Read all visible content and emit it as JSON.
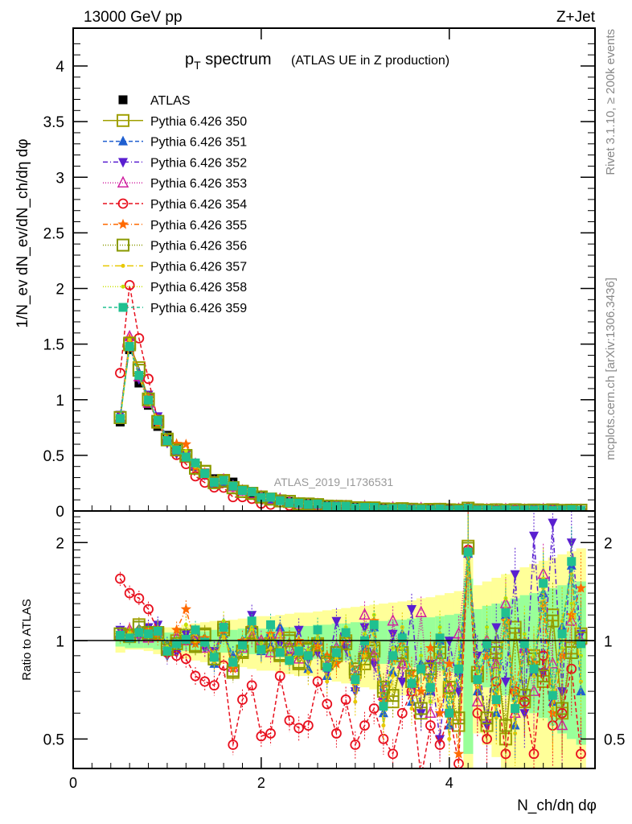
{
  "chart_data": {
    "type": "line",
    "header_left": "13000 GeV pp",
    "header_right": "Z+Jet",
    "title_main": "p",
    "title_sub": "T",
    "title_word": " spectrum",
    "title_note": "(ATLAS UE in Z production)",
    "ylabel_main": "1/N_ev dN_ev/dN_ch/dη dφ",
    "ylabel_ratio": "Ratio to ATLAS",
    "xlabel": "N_ch/dη dφ",
    "side_text_1": "Rivet 3.1.10, ≥ 200k events",
    "side_text_2": "mcplots.cern.ch [arXiv:1306.3436]",
    "watermark": "ATLAS_2019_I1736531",
    "xlim": [
      0,
      5.55
    ],
    "ylim_main": [
      0,
      4.34
    ],
    "ylim_ratio": [
      0.406,
      2.5
    ],
    "ratio_scale": "log",
    "x_ticks": [
      "0",
      "2",
      "4"
    ],
    "y_ticks_main": [
      "0",
      "0.5",
      "1",
      "1.5",
      "2",
      "2.5",
      "3",
      "3.5",
      "4"
    ],
    "y_ticks_ratio": [
      "0.5",
      "1",
      "2"
    ],
    "legend_placement": "top-left",
    "x": [
      0.5,
      0.6,
      0.7,
      0.8,
      0.9,
      1.0,
      1.1,
      1.2,
      1.3,
      1.4,
      1.5,
      1.6,
      1.7,
      1.8,
      1.9,
      2.0,
      2.1,
      2.2,
      2.3,
      2.4,
      2.5,
      2.6,
      2.7,
      2.8,
      2.9,
      3.0,
      3.1,
      3.2,
      3.3,
      3.4,
      3.5,
      3.6,
      3.7,
      3.8,
      3.9,
      4.0,
      4.1,
      4.2,
      4.3,
      4.4,
      4.5,
      4.6,
      4.7,
      4.8,
      4.9,
      5.0,
      5.1,
      5.2,
      5.3,
      5.4
    ],
    "data": {
      "name": "ATLAS",
      "values": [
        0.8,
        1.45,
        1.15,
        0.95,
        0.76,
        0.68,
        0.56,
        0.48,
        0.4,
        0.34,
        0.29,
        0.25,
        0.26,
        0.19,
        0.15,
        0.13,
        0.11,
        0.1,
        0.085,
        0.075,
        0.066,
        0.058,
        0.051,
        0.045,
        0.04,
        0.036,
        0.032,
        0.029,
        0.026,
        0.024,
        0.022,
        0.02,
        0.018,
        0.017,
        0.016,
        0.015,
        0.014,
        0.013,
        0.012,
        0.011,
        0.011,
        0.01,
        0.01,
        0.009,
        0.009,
        0.008,
        0.008,
        0.008,
        0.007,
        0.007
      ],
      "band_inner": [
        0.04,
        0.05,
        0.05,
        0.05,
        0.06,
        0.06,
        0.06,
        0.07,
        0.07,
        0.07,
        0.08,
        0.08,
        0.08,
        0.09,
        0.09,
        0.09,
        0.1,
        0.1,
        0.1,
        0.11,
        0.11,
        0.12,
        0.12,
        0.13,
        0.13,
        0.14,
        0.14,
        0.15,
        0.15,
        0.16,
        0.16,
        0.17,
        0.18,
        0.18,
        0.19,
        0.2,
        0.21,
        0.55,
        0.25,
        0.28,
        0.3,
        0.32,
        0.35,
        0.38,
        0.4,
        0.42,
        0.45,
        0.48,
        0.5,
        0.52
      ],
      "band_outer": [
        0.08,
        0.06,
        0.06,
        0.07,
        0.09,
        0.1,
        0.1,
        0.12,
        0.13,
        0.14,
        0.15,
        0.15,
        0.16,
        0.17,
        0.18,
        0.19,
        0.19,
        0.2,
        0.21,
        0.22,
        0.22,
        0.23,
        0.24,
        0.25,
        0.26,
        0.27,
        0.28,
        0.29,
        0.3,
        0.31,
        0.32,
        0.33,
        0.35,
        0.36,
        0.38,
        0.4,
        0.42,
        0.8,
        0.48,
        0.52,
        0.56,
        0.6,
        0.64,
        0.68,
        0.72,
        0.76,
        0.8,
        0.84,
        0.88,
        0.92
      ],
      "band_inner_color": "#99ff99",
      "band_outer_color": "#ffff99"
    },
    "series": [
      {
        "name": "Pythia 6.426 350",
        "color": "#a0a000",
        "marker": "square-open",
        "dash": "",
        "ratio": [
          1.05,
          1.03,
          1.12,
          1.05,
          1.05,
          0.95,
          1.0,
          1.02,
          0.97,
          1.05,
          0.88,
          1.1,
          0.8,
          0.92,
          1.05,
          0.97,
          0.98,
          0.9,
          1.02,
          0.85,
          0.95,
          0.98,
          0.85,
          0.9,
          1.0,
          0.8,
          0.85,
          0.95,
          0.7,
          0.65,
          0.9,
          0.75,
          0.6,
          0.8,
          0.95,
          0.7,
          0.55,
          1.95,
          0.8,
          0.55,
          0.95,
          0.5,
          1.1,
          0.65,
          0.9,
          0.75,
          1.2,
          0.6,
          0.95,
          1.05
        ]
      },
      {
        "name": "Pythia 6.426 351",
        "color": "#1f5fd0",
        "marker": "triangle-up",
        "dash": "5,3",
        "ratio": [
          1.06,
          1.02,
          1.08,
          1.04,
          1.1,
          0.97,
          0.95,
          1.03,
          1.0,
          0.98,
          0.85,
          1.05,
          0.9,
          1.0,
          1.12,
          0.93,
          0.96,
          1.1,
          0.88,
          0.95,
          0.82,
          1.0,
          0.78,
          0.9,
          1.05,
          0.72,
          0.95,
          1.1,
          0.6,
          0.8,
          1.05,
          0.65,
          0.85,
          0.7,
          1.0,
          0.55,
          0.8,
          1.85,
          0.7,
          0.95,
          0.6,
          1.2,
          0.55,
          0.95,
          0.8,
          1.4,
          0.65,
          1.1,
          1.7,
          0.7
        ]
      },
      {
        "name": "Pythia 6.426 352",
        "color": "#5a1fd0",
        "marker": "triangle-down",
        "dash": "6,3,1,3",
        "ratio": [
          1.08,
          1.05,
          1.03,
          1.1,
          1.12,
          0.9,
          0.92,
          1.05,
          1.02,
          0.95,
          0.93,
          1.08,
          0.85,
          0.97,
          1.2,
          0.95,
          1.02,
          0.98,
          0.9,
          1.08,
          0.88,
          0.92,
          0.8,
          1.15,
          0.95,
          0.7,
          1.1,
          0.85,
          0.65,
          1.05,
          0.75,
          1.25,
          0.6,
          0.85,
          0.5,
          1.0,
          0.7,
          1.8,
          0.9,
          0.55,
          1.1,
          0.75,
          1.6,
          0.6,
          2.1,
          0.8,
          2.3,
          0.7,
          2.0,
          1.05
        ]
      },
      {
        "name": "Pythia 6.426 353",
        "color": "#d020a0",
        "marker": "triangle-open",
        "dash": "1,2",
        "ratio": [
          1.05,
          1.08,
          1.05,
          1.02,
          1.07,
          0.93,
          1.02,
          1.0,
          1.05,
          0.95,
          0.9,
          1.12,
          0.83,
          0.95,
          1.03,
          1.0,
          0.92,
          1.05,
          0.95,
          0.88,
          0.92,
          1.0,
          0.84,
          0.95,
          1.02,
          0.78,
          1.2,
          0.9,
          0.68,
          1.15,
          0.85,
          0.7,
          1.22,
          0.6,
          0.88,
          0.72,
          1.05,
          1.9,
          0.65,
          1.0,
          0.85,
          1.3,
          0.6,
          0.95,
          0.7,
          1.6,
          0.85,
          0.55,
          1.15,
          1.0
        ]
      },
      {
        "name": "Pythia 6.426 354",
        "color": "#e8101e",
        "marker": "circle-open",
        "dash": "5,3",
        "ratio": [
          1.55,
          1.4,
          1.35,
          1.25,
          1.07,
          0.92,
          0.9,
          0.88,
          0.78,
          0.75,
          0.73,
          0.84,
          0.48,
          0.66,
          0.73,
          0.51,
          0.52,
          0.78,
          0.57,
          0.54,
          0.55,
          0.75,
          0.64,
          0.52,
          0.66,
          0.48,
          0.55,
          0.62,
          0.5,
          0.45,
          0.6,
          0.7,
          0.38,
          0.55,
          0.48,
          0.6,
          0.42,
          1.9,
          0.6,
          0.5,
          0.75,
          0.45,
          0.7,
          0.65,
          0.45,
          0.9,
          0.55,
          0.6,
          0.82,
          0.45
        ]
      },
      {
        "name": "Pythia 6.426 355",
        "color": "#ff6a00",
        "marker": "star",
        "dash": "6,3,1,3",
        "ratio": [
          1.04,
          1.07,
          1.06,
          1.08,
          1.03,
          0.95,
          1.08,
          1.25,
          0.98,
          1.02,
          0.9,
          1.08,
          0.82,
          1.0,
          1.1,
          0.94,
          1.05,
          0.93,
          0.88,
          1.0,
          0.9,
          0.96,
          0.9,
          0.85,
          1.05,
          0.75,
          0.92,
          1.15,
          0.65,
          0.88,
          1.0,
          0.8,
          0.7,
          0.95,
          0.6,
          0.85,
          0.45,
          1.88,
          0.75,
          0.9,
          0.65,
          1.15,
          0.7,
          1.0,
          0.85,
          1.3,
          0.6,
          0.9,
          1.2,
          1.45
        ]
      },
      {
        "name": "Pythia 6.426 356",
        "color": "#8a9a00",
        "marker": "square-open",
        "dash": "1,2",
        "ratio": [
          1.05,
          1.04,
          1.1,
          1.06,
          1.06,
          0.94,
          0.98,
          1.04,
          0.96,
          1.04,
          0.88,
          1.08,
          0.81,
          0.93,
          1.06,
          0.96,
          0.97,
          0.91,
          1.0,
          0.86,
          0.94,
          0.97,
          0.86,
          0.92,
          0.98,
          0.82,
          0.88,
          0.93,
          0.72,
          0.68,
          0.92,
          0.78,
          0.62,
          0.82,
          0.92,
          0.72,
          0.58,
          1.92,
          0.78,
          0.58,
          0.92,
          0.55,
          1.05,
          0.68,
          0.88,
          0.78,
          1.15,
          0.62,
          0.92,
          1.02
        ]
      },
      {
        "name": "Pythia 6.426 357",
        "color": "#e8c800",
        "marker": "dot",
        "dash": "8,3,1,3",
        "ratio": [
          1.03,
          1.02,
          1.05,
          1.04,
          1.08,
          0.92,
          0.96,
          1.02,
          1.05,
          0.97,
          0.86,
          1.03,
          0.88,
          0.98,
          1.1,
          0.92,
          0.95,
          1.05,
          0.85,
          0.92,
          0.8,
          1.05,
          0.75,
          0.88,
          1.08,
          0.65,
          0.9,
          1.05,
          0.55,
          0.78,
          1.1,
          0.62,
          0.8,
          0.75,
          1.05,
          0.5,
          0.85,
          1.8,
          0.72,
          1.0,
          0.58,
          1.25,
          0.52,
          1.0,
          0.78,
          1.45,
          0.62,
          1.15,
          1.6,
          0.75
        ]
      },
      {
        "name": "Pythia 6.426 358",
        "color": "#c8e000",
        "marker": "dot",
        "dash": "1,2",
        "ratio": [
          1.04,
          1.06,
          1.05,
          1.03,
          1.09,
          0.96,
          1.0,
          1.12,
          1.0,
          0.99,
          0.92,
          1.15,
          0.84,
          0.96,
          1.08,
          0.98,
          1.04,
          0.95,
          0.9,
          0.96,
          0.94,
          1.02,
          0.82,
          0.9,
          1.1,
          0.74,
          1.05,
          1.2,
          0.62,
          0.95,
          0.95,
          0.75,
          0.9,
          0.65,
          1.1,
          0.62,
          0.88,
          1.85,
          0.8,
          1.1,
          0.7,
          1.35,
          0.65,
          1.05,
          0.9,
          1.55,
          0.7,
          0.95,
          1.3,
          0.9
        ]
      },
      {
        "name": "Pythia 6.426 359",
        "color": "#20c090",
        "marker": "square",
        "dash": "4,3",
        "ratio": [
          1.04,
          1.02,
          1.06,
          1.05,
          1.07,
          0.93,
          0.98,
          1.01,
          1.08,
          0.99,
          0.89,
          1.1,
          0.86,
          0.97,
          1.15,
          0.94,
          1.12,
          0.92,
          0.87,
          0.93,
          0.9,
          1.08,
          0.83,
          0.92,
          1.06,
          0.76,
          1.0,
          1.12,
          0.63,
          0.9,
          1.02,
          0.74,
          0.82,
          0.72,
          1.02,
          0.6,
          0.82,
          1.87,
          0.76,
          0.98,
          0.66,
          1.22,
          0.62,
          0.98,
          0.82,
          1.5,
          0.68,
          1.05,
          1.75,
          0.98
        ]
      }
    ]
  }
}
